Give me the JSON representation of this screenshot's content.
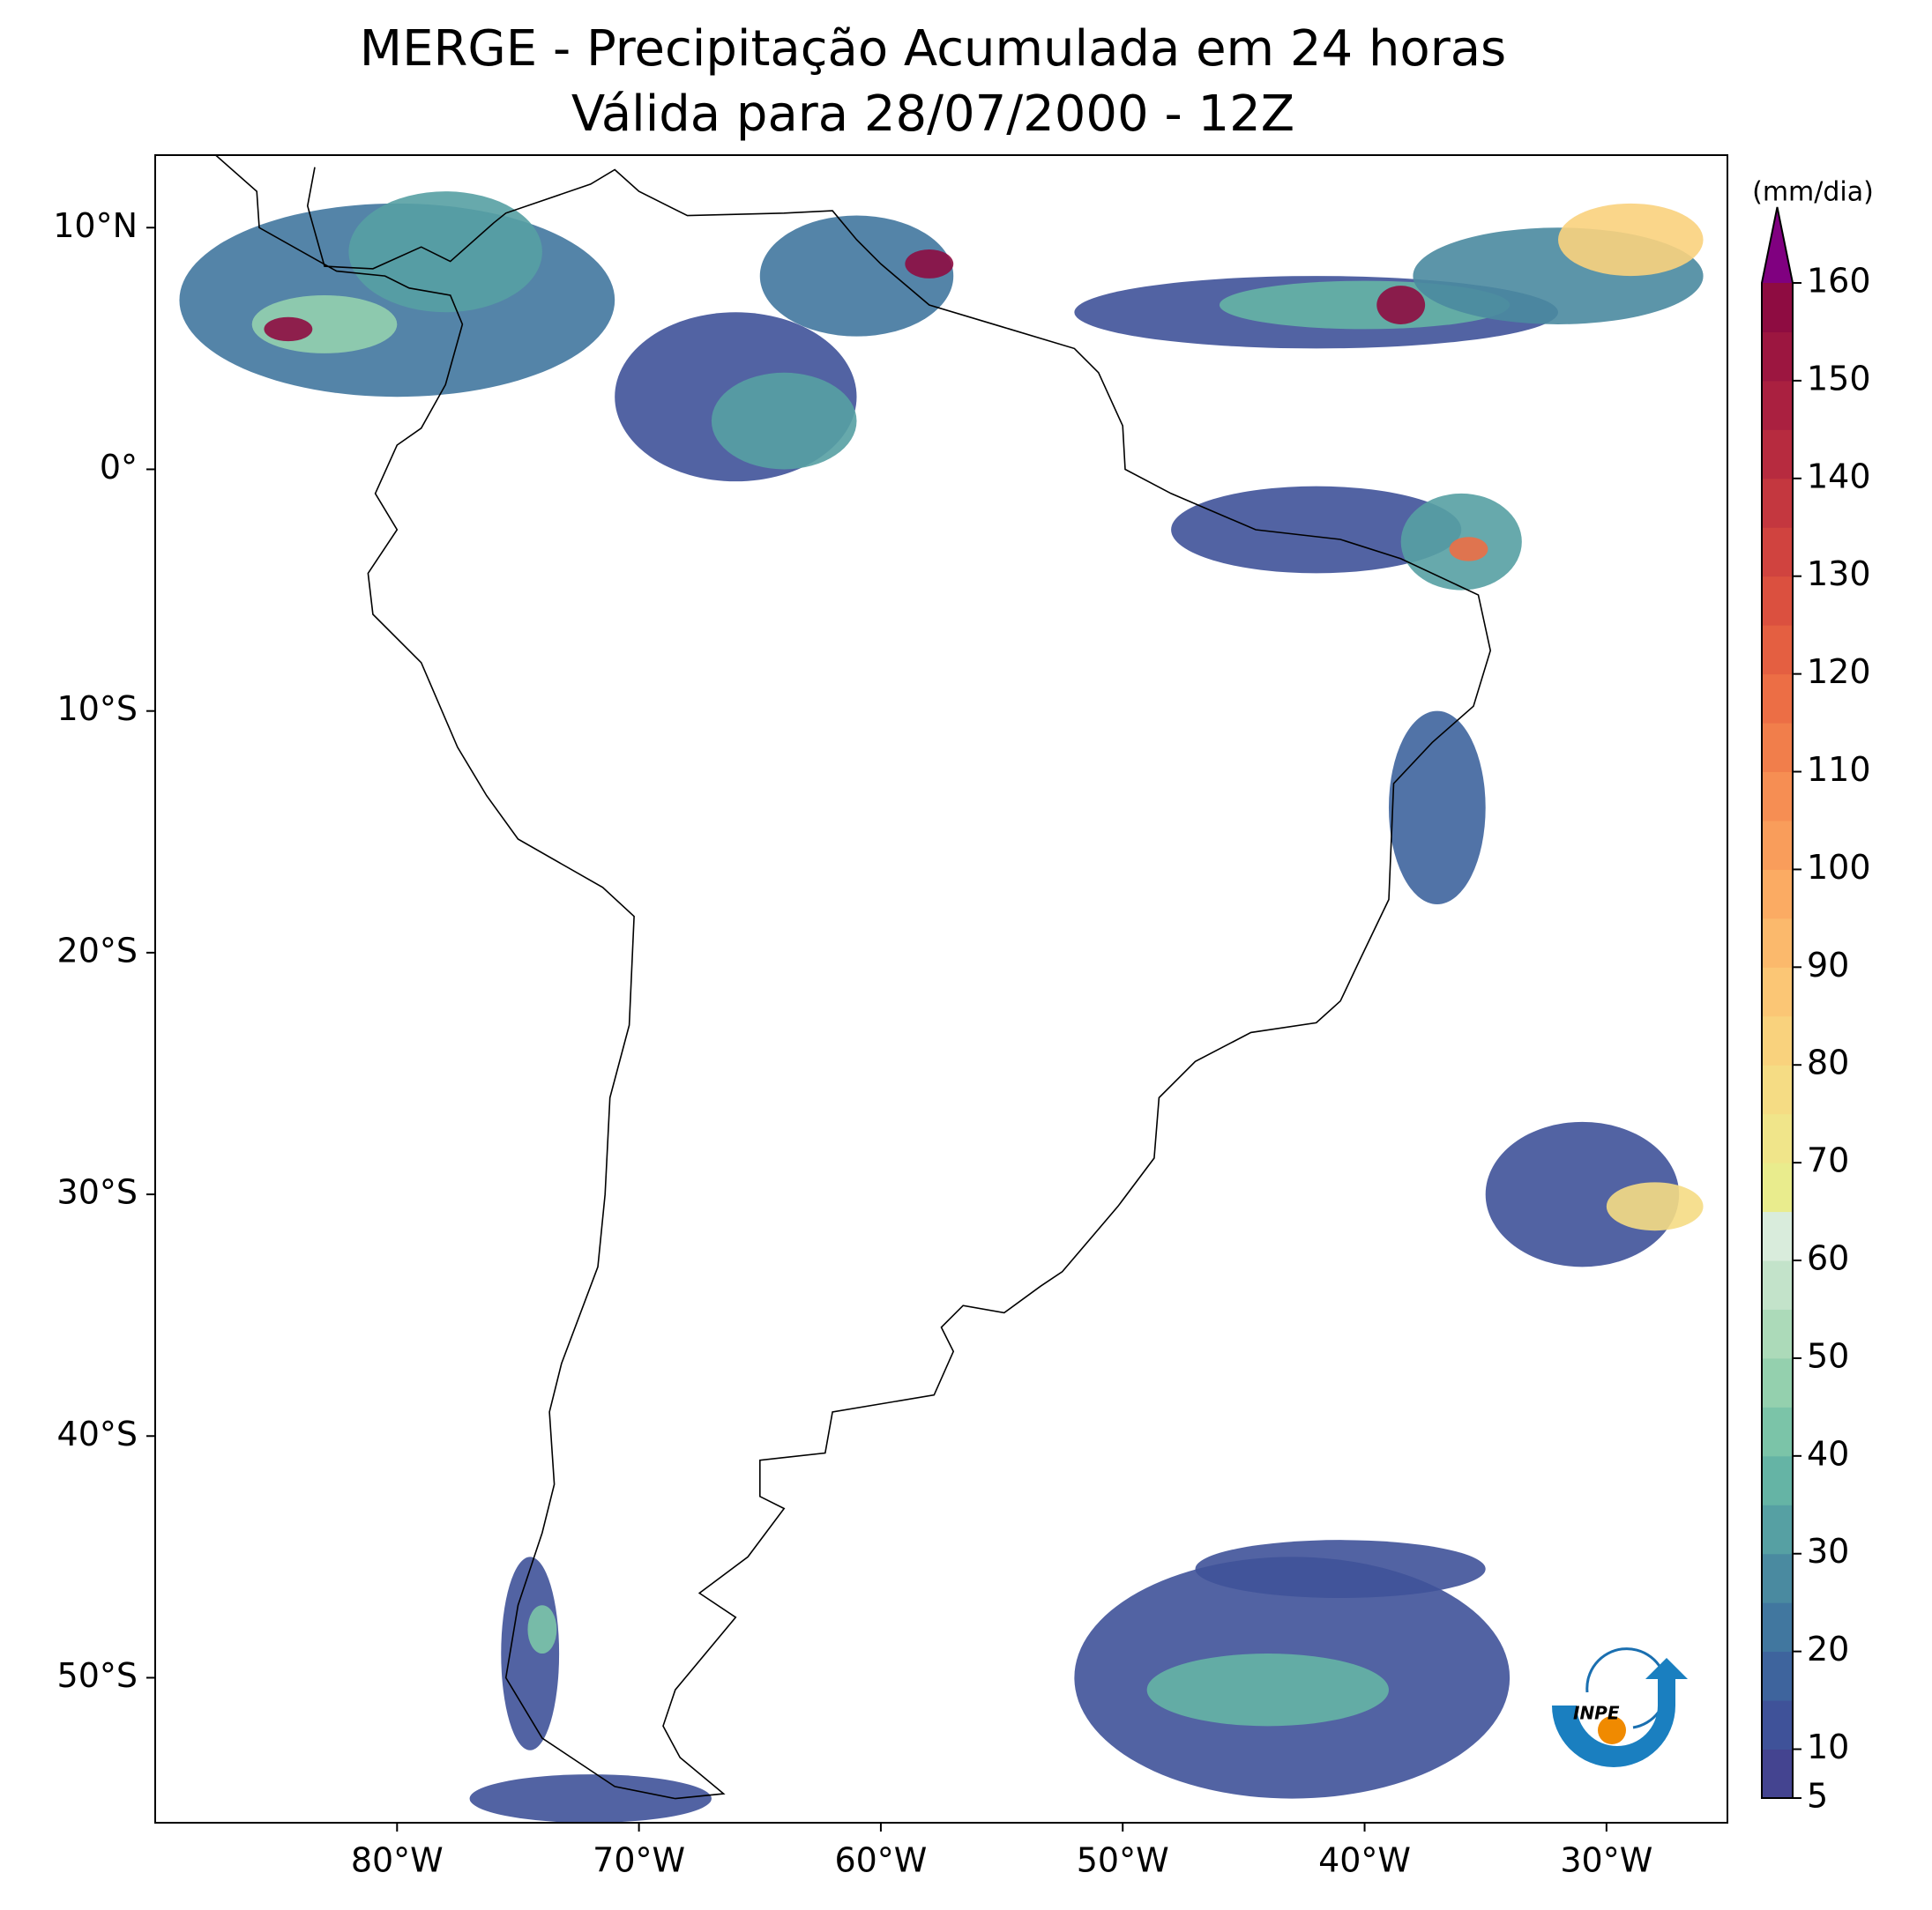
{
  "map": {
    "title": "MERGE - Precipitação Acumulada em 24 horas",
    "subtitle": "Válida para 28/07/2000 - 12Z",
    "lon_range": [
      -90,
      -25
    ],
    "lat_range": [
      -56,
      13
    ],
    "lon_ticks": [
      {
        "value": -80,
        "label": "80°W"
      },
      {
        "value": -70,
        "label": "70°W"
      },
      {
        "value": -60,
        "label": "60°W"
      },
      {
        "value": -50,
        "label": "50°W"
      },
      {
        "value": -40,
        "label": "40°W"
      },
      {
        "value": -30,
        "label": "30°W"
      }
    ],
    "lat_ticks": [
      {
        "value": 10,
        "label": "10°N"
      },
      {
        "value": 0,
        "label": "0°"
      },
      {
        "value": -10,
        "label": "10°S"
      },
      {
        "value": -20,
        "label": "20°S"
      },
      {
        "value": -30,
        "label": "30°S"
      },
      {
        "value": -40,
        "label": "40°S"
      },
      {
        "value": -50,
        "label": "50°S"
      }
    ],
    "colorbar": {
      "label": "(mm/dia)",
      "range": [
        5,
        160
      ],
      "ticks": [
        5,
        10,
        20,
        30,
        40,
        50,
        60,
        70,
        80,
        90,
        100,
        110,
        120,
        130,
        140,
        150,
        160
      ],
      "colors": [
        "#444490",
        "#3f5299",
        "#3e649d",
        "#41779f",
        "#4a8aa0",
        "#56a0a3",
        "#65b4a5",
        "#7bc4a8",
        "#94d0ae",
        "#acdab9",
        "#c3e3ca",
        "#d9ecdc",
        "#e9ec8d",
        "#f0e58a",
        "#f5dc84",
        "#f9d27d",
        "#fbc675",
        "#fbb96c",
        "#fbab63",
        "#f99d5b",
        "#f68e53",
        "#f17e4b",
        "#ec6e45",
        "#e45f41",
        "#db503f",
        "#d0433f",
        "#c4373f",
        "#b72b3f",
        "#aa2040",
        "#9c1640",
        "#8e0c41"
      ],
      "extend_color": "#800080"
    }
  },
  "logo": {
    "text": "INPE"
  }
}
